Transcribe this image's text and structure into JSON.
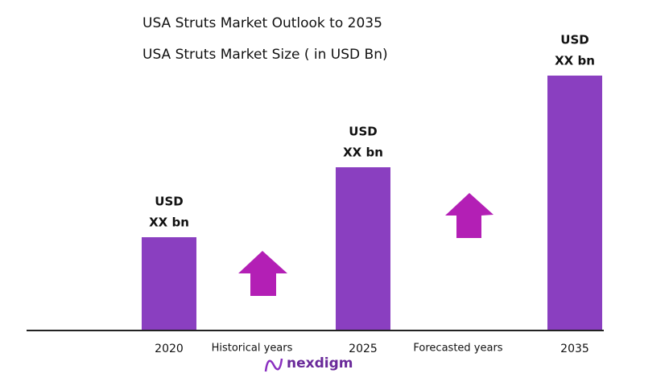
{
  "chart_data": {
    "type": "bar",
    "title": "USA Struts Market Outlook to 2035",
    "subtitle": "USA Struts Market Size  ( in USD Bn)",
    "categories": [
      "2020",
      "2025",
      "2035"
    ],
    "values": [
      115,
      202,
      316
    ],
    "value_labels": [
      [
        "USD",
        "XX bn"
      ],
      [
        "USD",
        "XX bn"
      ],
      [
        "USD",
        "XX bn"
      ]
    ],
    "color": "#8a3fc0",
    "ylim": [
      0,
      330
    ],
    "annotations": [
      "Historical years",
      "Forecasted years"
    ],
    "brand": "nexdigm"
  }
}
